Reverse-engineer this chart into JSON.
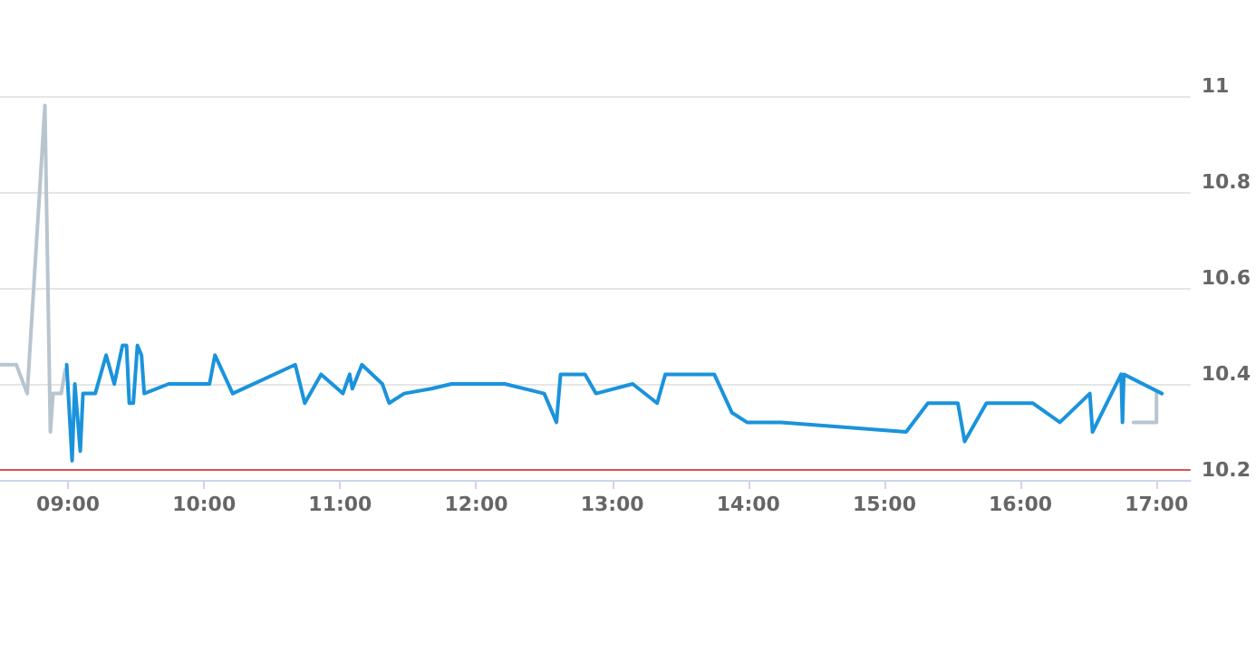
{
  "chart_data": {
    "type": "line",
    "xlim": [
      8.5,
      17.25
    ],
    "ylim": [
      10.2,
      11
    ],
    "xticks": [
      {
        "value": 9,
        "label": "09:00"
      },
      {
        "value": 10,
        "label": "10:00"
      },
      {
        "value": 11,
        "label": "11:00"
      },
      {
        "value": 12,
        "label": "12:00"
      },
      {
        "value": 13,
        "label": "13:00"
      },
      {
        "value": 14,
        "label": "14:00"
      },
      {
        "value": 15,
        "label": "15:00"
      },
      {
        "value": 16,
        "label": "16:00"
      },
      {
        "value": 17,
        "label": "17:00"
      }
    ],
    "yticks": [
      10.2,
      10.4,
      10.6,
      10.8,
      11
    ],
    "grid": "y",
    "marker": "none",
    "line_style": "solid",
    "series": [
      {
        "color": "#b8c5cf",
        "x": [
          8.5,
          8.62,
          8.7,
          8.83,
          8.87,
          8.89,
          8.95,
          8.98,
          8.99,
          16.83,
          17.0,
          17.0
        ],
        "values": [
          10.44,
          10.44,
          10.38,
          10.98,
          10.3,
          10.38,
          10.38,
          10.43,
          null,
          10.32,
          10.32,
          10.38
        ]
      },
      {
        "color": "#1a93dc",
        "x": [
          8.99,
          9.03,
          9.05,
          9.09,
          9.11,
          9.2,
          9.28,
          9.34,
          9.4,
          9.43,
          9.45,
          9.48,
          9.51,
          9.54,
          9.56,
          9.74,
          10.04,
          10.08,
          10.21,
          10.67,
          10.74,
          10.86,
          11.02,
          11.07,
          11.09,
          11.16,
          11.31,
          11.36,
          11.47,
          11.67,
          11.82,
          12.21,
          12.5,
          12.59,
          12.62,
          12.8,
          12.88,
          13.15,
          13.33,
          13.39,
          13.75,
          13.88,
          13.99,
          14.24,
          15.16,
          15.32,
          15.54,
          15.59,
          15.75,
          16.09,
          16.29,
          16.51,
          16.53,
          16.74,
          16.75,
          16.76,
          17.04
        ],
        "values": [
          10.44,
          10.24,
          10.4,
          10.26,
          10.38,
          10.38,
          10.46,
          10.4,
          10.48,
          10.48,
          10.36,
          10.36,
          10.48,
          10.46,
          10.38,
          10.4,
          10.4,
          10.46,
          10.38,
          10.44,
          10.36,
          10.42,
          10.38,
          10.42,
          10.39,
          10.44,
          10.4,
          10.36,
          10.38,
          10.39,
          10.4,
          10.4,
          10.38,
          10.32,
          10.42,
          10.42,
          10.38,
          10.4,
          10.36,
          10.42,
          10.42,
          10.34,
          10.32,
          10.32,
          10.3,
          10.36,
          10.36,
          10.28,
          10.36,
          10.36,
          10.32,
          10.38,
          10.3,
          10.42,
          10.32,
          10.42,
          10.38
        ]
      }
    ],
    "ref_lines": [
      {
        "axis": "y",
        "value": 10.22,
        "color": "#d9534f"
      }
    ]
  }
}
